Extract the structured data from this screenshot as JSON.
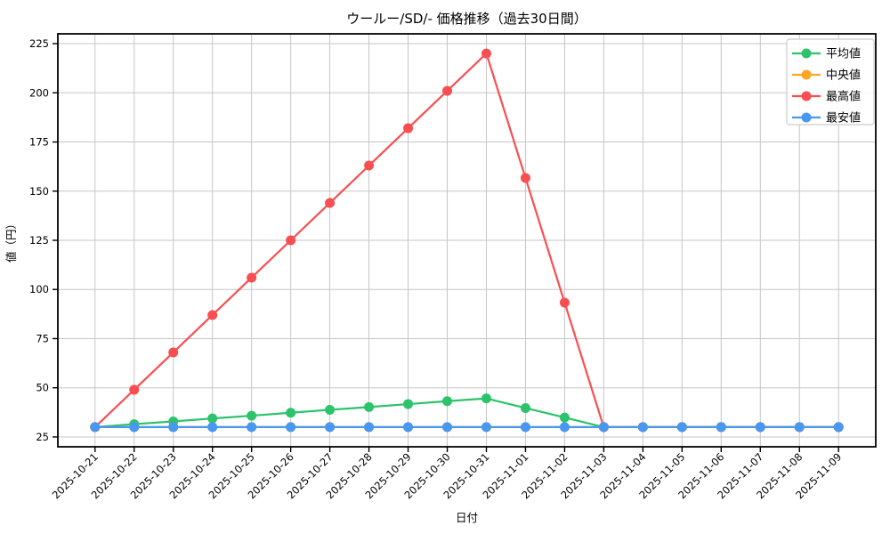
{
  "chart_data": {
    "type": "line",
    "title": "ウールー/SD/- 価格推移（過去30日間）",
    "xlabel": "日付",
    "ylabel": "値（円）",
    "x": [
      "2025-10-21",
      "2025-10-22",
      "2025-10-23",
      "2025-10-24",
      "2025-10-25",
      "2025-10-26",
      "2025-10-27",
      "2025-10-28",
      "2025-10-29",
      "2025-10-30",
      "2025-10-31",
      "2025-11-01",
      "2025-11-02",
      "2025-11-03",
      "2025-11-04",
      "2025-11-05",
      "2025-11-06",
      "2025-11-07",
      "2025-11-08",
      "2025-11-09"
    ],
    "series": [
      {
        "name": "平均値",
        "color": "#2cc36b",
        "values": [
          30,
          31.5,
          32.9,
          34.4,
          35.8,
          37.3,
          38.8,
          40.2,
          41.7,
          43.2,
          44.6,
          39.7,
          34.9,
          30,
          30,
          30,
          30,
          30,
          30,
          30
        ]
      },
      {
        "name": "中央値",
        "color": "#ffa722",
        "values": [
          30,
          30,
          30,
          30,
          30,
          30,
          30,
          30,
          30,
          30,
          30,
          30,
          30,
          30,
          30,
          30,
          30,
          30,
          30,
          30
        ]
      },
      {
        "name": "最高値",
        "color": "#f94e51",
        "values": [
          30,
          49,
          68,
          87,
          106,
          125,
          144,
          163,
          182,
          201,
          220,
          156.7,
          93.3,
          30,
          30,
          30,
          30,
          30,
          30,
          30
        ]
      },
      {
        "name": "最安値",
        "color": "#4897f0",
        "values": [
          30,
          30,
          30,
          30,
          30,
          30,
          30,
          30,
          30,
          30,
          30,
          30,
          30,
          30,
          30,
          30,
          30,
          30,
          30,
          30
        ]
      }
    ],
    "ylim": [
      20,
      230
    ],
    "yticks": [
      25,
      50,
      75,
      100,
      125,
      150,
      175,
      200,
      225
    ],
    "grid": true,
    "legend_position": "top-right",
    "colors": {
      "grid": "#c6c6c6",
      "spine": "#000000",
      "legend_border": "#cccccc",
      "background": "#ffffff"
    }
  }
}
